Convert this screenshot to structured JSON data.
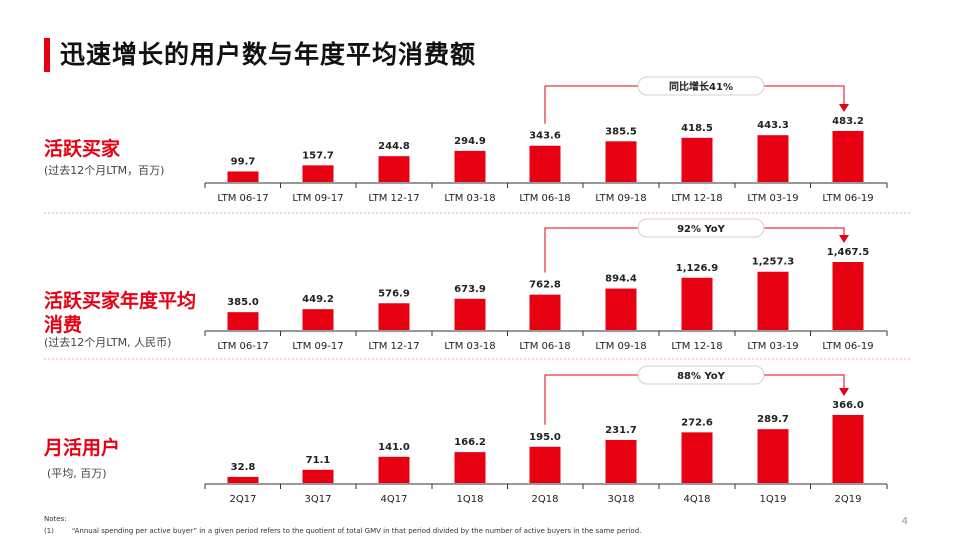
{
  "page": {
    "title": "迅速增长的用户数与年度平均消费额",
    "page_number": "4",
    "accent_color": "#e60012",
    "notes_title": "Notes:",
    "notes": [
      {
        "index": "(1)",
        "text": "“Annual spending per active buyer” in a given period refers to the quotient of total GMV in that period divided by the number of active buyers in the same period."
      }
    ]
  },
  "sections": [
    {
      "label": "活跃买家",
      "label_line2": "",
      "sublabel": "(过去12个月LTM，百万)"
    },
    {
      "label": "活跃买家年度平均",
      "label_line2": "消费",
      "sublabel": "(过去12个月LTM, 人民币)"
    },
    {
      "label": "月活用户",
      "label_line2": "",
      "sublabel": "(平均, 百万)"
    }
  ],
  "chart_data": [
    {
      "type": "bar",
      "categories": [
        "LTM 06-17",
        "LTM 09-17",
        "LTM 12-17",
        "LTM 03-18",
        "LTM 06-18",
        "LTM 09-18",
        "LTM 12-18",
        "LTM 03-19",
        "LTM 06-19"
      ],
      "values": [
        99.7,
        157.7,
        244.8,
        294.9,
        343.6,
        385.5,
        418.5,
        443.3,
        483.2
      ],
      "value_labels": [
        "99.7",
        "157.7",
        "244.8",
        "294.9",
        "343.6",
        "385.5",
        "418.5",
        "443.3",
        "483.2"
      ],
      "bar_color": "#e60012",
      "annotation": {
        "text": "同比增长41%",
        "from_index": 4,
        "to_index": 8
      },
      "ylim": [
        0,
        483.2
      ]
    },
    {
      "type": "bar",
      "categories": [
        "LTM 06-17",
        "LTM 09-17",
        "LTM 12-17",
        "LTM 03-18",
        "LTM 06-18",
        "LTM 09-18",
        "LTM 12-18",
        "LTM 03-19",
        "LTM 06-19"
      ],
      "values": [
        385.0,
        449.2,
        576.9,
        673.9,
        762.8,
        894.4,
        1126.9,
        1257.3,
        1467.5
      ],
      "value_labels": [
        "385.0",
        "449.2",
        "576.9",
        "673.9",
        "762.8",
        "894.4",
        "1,126.9",
        "1,257.3",
        "1,467.5"
      ],
      "bar_color": "#e60012",
      "annotation": {
        "text": "92% YoY",
        "from_index": 4,
        "to_index": 8
      },
      "ylim": [
        0,
        1467.5
      ]
    },
    {
      "type": "bar",
      "categories": [
        "2Q17",
        "3Q17",
        "4Q17",
        "1Q18",
        "2Q18",
        "3Q18",
        "4Q18",
        "1Q19",
        "2Q19"
      ],
      "values": [
        32.8,
        71.1,
        141.0,
        166.2,
        195.0,
        231.7,
        272.6,
        289.7,
        366.0
      ],
      "value_labels": [
        "32.8",
        "71.1",
        "141.0",
        "166.2",
        "195.0",
        "231.7",
        "272.6",
        "289.7",
        "366.0"
      ],
      "bar_color": "#e60012",
      "annotation": {
        "text": "88% YoY",
        "from_index": 4,
        "to_index": 8
      },
      "ylim": [
        0,
        366.0
      ]
    }
  ]
}
